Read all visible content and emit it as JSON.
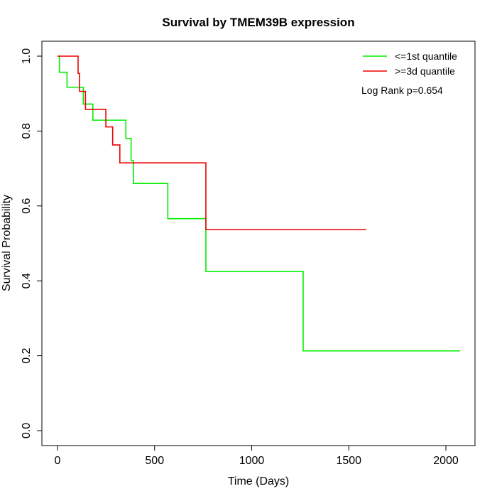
{
  "chart_data": {
    "type": "line",
    "subtype": "kaplan-meier step",
    "title": "Survival by TMEM39B expression",
    "xlabel": "Time (Days)",
    "ylabel": "Survival Probability",
    "xlim": [
      0,
      2073
    ],
    "ylim": [
      0,
      1
    ],
    "xticks": [
      "0",
      "500",
      "1000",
      "1500",
      "2000"
    ],
    "yticks": [
      "0.0",
      "0.2",
      "0.4",
      "0.6",
      "0.8",
      "1.0"
    ],
    "grid": false,
    "legend_position": "top-right",
    "annotation": "Log Rank p=0.654",
    "series": [
      {
        "name": "<=1st quantile",
        "color": "#00ee00",
        "x": [
          0,
          10,
          49,
          133,
          182,
          352,
          379,
          391,
          568,
          764,
          1265,
          2073
        ],
        "y": [
          1.0,
          0.957,
          0.917,
          0.872,
          0.829,
          0.78,
          0.721,
          0.66,
          0.566,
          0.425,
          0.213,
          0.213
        ]
      },
      {
        "name": ">=3d quantile",
        "color": "#ee0000",
        "x": [
          0,
          106,
          113,
          144,
          249,
          284,
          321,
          764,
          1590
        ],
        "y": [
          1.0,
          0.954,
          0.906,
          0.858,
          0.811,
          0.763,
          0.715,
          0.537,
          0.537
        ]
      }
    ]
  }
}
